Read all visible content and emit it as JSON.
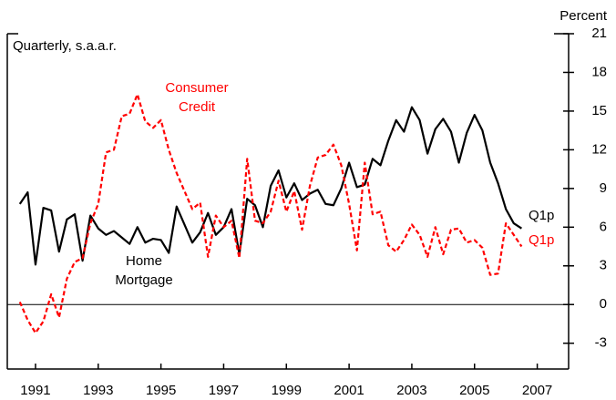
{
  "chart_data": {
    "type": "line",
    "y_axis_label": "Percent",
    "annotations": [
      "Quarterly, s.a.a.r.",
      "Consumer",
      "Credit",
      "Home",
      "Mortgage",
      "Q1p",
      "Q1p"
    ],
    "xlim": [
      1990.6,
      2008.5
    ],
    "xticks": [
      {
        "value": 1991.5,
        "label": "1991"
      },
      {
        "value": 1993.5,
        "label": "1993"
      },
      {
        "value": 1995.5,
        "label": "1995"
      },
      {
        "value": 1997.5,
        "label": "1997"
      },
      {
        "value": 1999.5,
        "label": "1999"
      },
      {
        "value": 2001.5,
        "label": "2001"
      },
      {
        "value": 2003.5,
        "label": "2003"
      },
      {
        "value": 2005.5,
        "label": "2005"
      },
      {
        "value": 2007.5,
        "label": "2007"
      }
    ],
    "ylim": [
      -5,
      21
    ],
    "yticks": [
      -3,
      0,
      3,
      6,
      9,
      12,
      15,
      18,
      21
    ],
    "x": [
      1991,
      1991.25,
      1991.5,
      1991.75,
      1992,
      1992.25,
      1992.5,
      1992.75,
      1993,
      1993.25,
      1993.5,
      1993.75,
      1994,
      1994.25,
      1994.5,
      1994.75,
      1995,
      1995.25,
      1995.5,
      1995.75,
      1996,
      1996.25,
      1996.5,
      1996.75,
      1997,
      1997.25,
      1997.5,
      1997.75,
      1998,
      1998.25,
      1998.5,
      1998.75,
      1999,
      1999.25,
      1999.5,
      1999.75,
      2000,
      2000.25,
      2000.5,
      2000.75,
      2001,
      2001.25,
      2001.5,
      2001.75,
      2002,
      2002.25,
      2002.5,
      2002.75,
      2003,
      2003.25,
      2003.5,
      2003.75,
      2004,
      2004.25,
      2004.5,
      2004.75,
      2005,
      2005.25,
      2005.5,
      2005.75,
      2006,
      2006.25,
      2006.5,
      2006.75,
      2007
    ],
    "series": [
      {
        "name": "Home Mortgage",
        "color": "#000000",
        "dash": false,
        "values": [
          7.8,
          8.7,
          3.1,
          7.5,
          7.3,
          4.1,
          6.6,
          7.0,
          3.4,
          6.9,
          5.9,
          5.4,
          5.7,
          5.2,
          4.7,
          6.0,
          4.8,
          5.1,
          5.0,
          4.0,
          7.6,
          6.2,
          4.8,
          5.6,
          7.1,
          5.4,
          6.0,
          7.4,
          3.9,
          8.2,
          7.7,
          6.0,
          9.2,
          10.4,
          8.3,
          9.4,
          8.1,
          8.6,
          8.9,
          7.8,
          7.7,
          9.0,
          11.0,
          9.1,
          9.3,
          11.3,
          10.8,
          12.7,
          14.3,
          13.4,
          15.3,
          14.3,
          11.7,
          13.6,
          14.4,
          13.4,
          11.0,
          13.3,
          14.7,
          13.5,
          11.0,
          9.4,
          7.4,
          6.3,
          5.9
        ]
      },
      {
        "name": "Consumer Credit",
        "color": "#ff0000",
        "dash": true,
        "values": [
          0.2,
          -1.2,
          -2.2,
          -1.3,
          0.8,
          -1.0,
          2.0,
          3.3,
          3.6,
          6.3,
          7.8,
          11.8,
          12.0,
          14.6,
          14.8,
          16.3,
          14.2,
          13.7,
          14.3,
          12.0,
          10.2,
          8.8,
          7.4,
          7.9,
          3.7,
          6.9,
          6.0,
          6.5,
          3.6,
          11.3,
          6.5,
          6.3,
          7.2,
          9.6,
          7.2,
          8.8,
          5.8,
          9.2,
          11.4,
          11.6,
          12.4,
          10.8,
          7.8,
          4.2,
          11.0,
          7.0,
          7.2,
          4.6,
          4.1,
          5.0,
          6.2,
          5.4,
          3.7,
          6.0,
          3.9,
          5.8,
          5.9,
          4.8,
          5.0,
          4.4,
          2.3,
          2.4,
          6.3,
          5.4,
          4.5
        ]
      }
    ]
  }
}
